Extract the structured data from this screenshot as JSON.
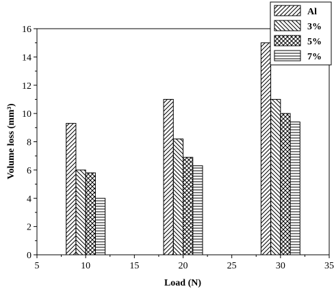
{
  "chart_data": {
    "type": "bar",
    "xlabel": "Load (N)",
    "ylabel": "Volume loss (mm³)",
    "x": [
      10,
      20,
      30
    ],
    "xlim": [
      5,
      35
    ],
    "ylim": [
      0,
      16
    ],
    "xticks": [
      5,
      10,
      15,
      20,
      25,
      30,
      35
    ],
    "yticks": [
      0,
      2,
      4,
      6,
      8,
      10,
      12,
      14,
      16
    ],
    "legend_position": "top-right",
    "series": [
      {
        "name": "Al",
        "values": [
          9.3,
          11,
          15
        ],
        "pattern": "diag-forward"
      },
      {
        "name": "3%",
        "values": [
          6.0,
          8.2,
          11
        ],
        "pattern": "diag-back"
      },
      {
        "name": "5%",
        "values": [
          5.8,
          6.9,
          10
        ],
        "pattern": "crosshatch"
      },
      {
        "name": "7%",
        "values": [
          4.0,
          6.3,
          9.4
        ],
        "pattern": "horizontal"
      }
    ]
  },
  "colors": {
    "line": "#000000",
    "background": "#ffffff"
  }
}
